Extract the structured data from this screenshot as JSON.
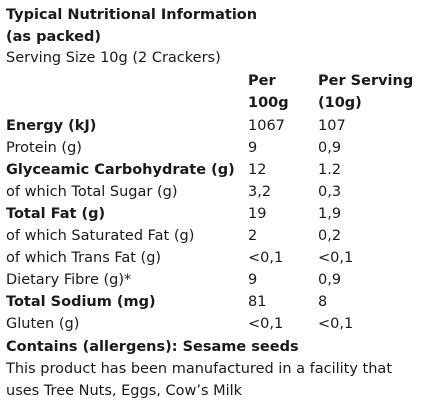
{
  "title_line1": "Typical Nutritional Information",
  "title_line2": "(as packed)",
  "serving_size": "Serving Size 10g (2 Crackers)",
  "columns": {
    "per100_line1": "Per",
    "per100_line2": "100g",
    "perServing_line1": "Per Serving",
    "perServing_line2": "(10g)"
  },
  "rows": [
    {
      "label": "Energy (kJ)",
      "per100": "1067",
      "perServing": "107",
      "bold": true
    },
    {
      "label": "Protein (g)",
      "per100": "9",
      "perServing": "0,9",
      "bold": false
    },
    {
      "label": "Glyceamic Carbohydrate (g)",
      "per100": "12",
      "perServing": "1.2",
      "bold": true
    },
    {
      "label": "of which Total Sugar (g)",
      "per100": "3,2",
      "perServing": "0,3",
      "bold": false
    },
    {
      "label": "Total Fat (g)",
      "per100": "19",
      "perServing": "1,9",
      "bold": true
    },
    {
      "label": "of which Saturated Fat (g)",
      "per100": "2",
      "perServing": "0,2",
      "bold": false
    },
    {
      "label": "of which Trans Fat (g)",
      "per100": "<0,1",
      "perServing": "<0,1",
      "bold": false
    },
    {
      "label": "Dietary Fibre (g)*",
      "per100": "9",
      "perServing": "0,9",
      "bold": false
    },
    {
      "label": "Total Sodium (mg)",
      "per100": "81",
      "perServing": "8",
      "bold": true
    },
    {
      "label": "Gluten (g)",
      "per100": "<0,1",
      "perServing": "<0,1",
      "bold": false
    }
  ],
  "allergens": "Contains (allergens): Sesame seeds",
  "facility_note": "This product has been manufactured in a facility that uses Tree Nuts, Eggs, Cow’s Milk"
}
